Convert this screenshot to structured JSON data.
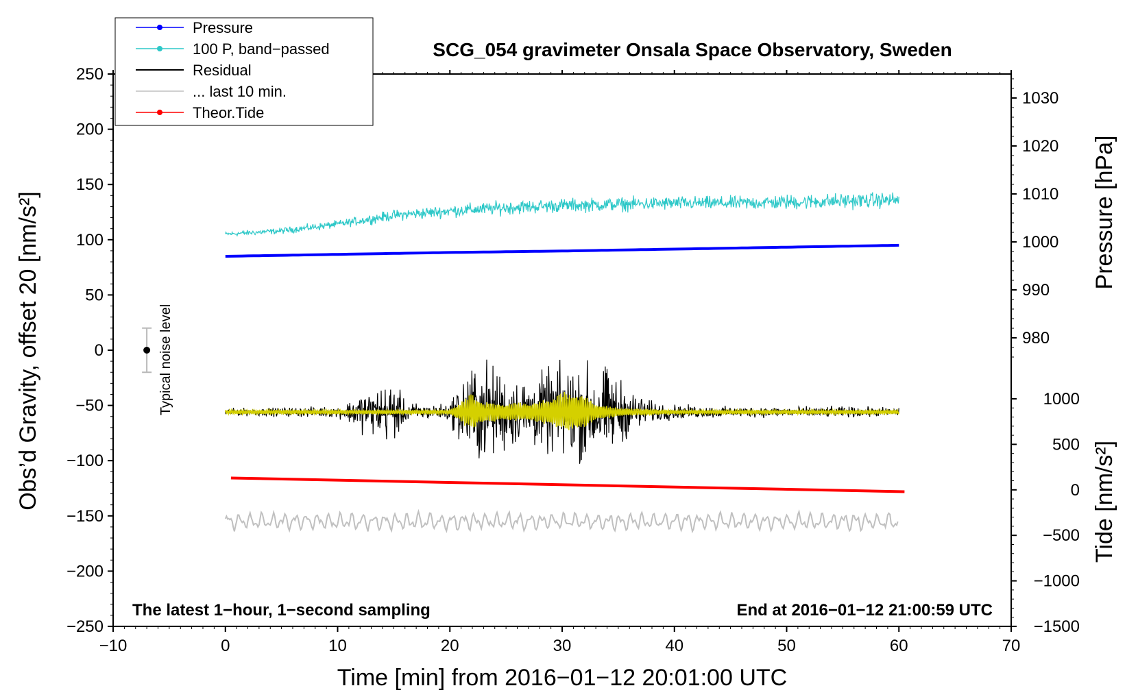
{
  "chart_data": {
    "type": "line",
    "title": "SCG_054 gravimeter Onsala Space Observatory, Sweden",
    "xlabel": "Time [min] from 2016−01−12 20:01:00 UTC",
    "ylabel_left": "Obs’d Gravity, offset 20 [nm/s²]",
    "ylabel_right_pressure": "Pressure [hPa]",
    "ylabel_right_tide": "Tide [nm/s²]",
    "xlim": [
      -10,
      70
    ],
    "ylim": [
      -250,
      250
    ],
    "pressure_axis_range": [
      975,
      1035
    ],
    "tide_axis_range": [
      -1500,
      1000
    ],
    "x_ticks": [
      -10,
      0,
      10,
      20,
      30,
      40,
      50,
      60,
      70
    ],
    "x_tick_labels": [
      "−10",
      "0",
      "10",
      "20",
      "30",
      "40",
      "50",
      "60",
      "70"
    ],
    "y_ticks": [
      250,
      200,
      150,
      100,
      50,
      0,
      -50,
      -100,
      -150,
      -200,
      -250
    ],
    "y_tick_labels": [
      "250",
      "200",
      "150",
      "100",
      "50",
      "0",
      "−50",
      "−100",
      "−150",
      "−200",
      "−250"
    ],
    "pressure_ticks": [
      1030,
      1020,
      1010,
      1000,
      990,
      980
    ],
    "pressure_tick_labels": [
      "1030",
      "1020",
      "1010",
      "1000",
      "990",
      "980"
    ],
    "tide_ticks": [
      1000,
      500,
      0,
      -500,
      -1000,
      -1500
    ],
    "tide_tick_labels": [
      "1000",
      "500",
      "0",
      "−500",
      "−1000",
      "−1500"
    ],
    "legend": {
      "position": "top-left",
      "entries": [
        {
          "label": "Pressure",
          "color": "#0000ff",
          "marker": true
        },
        {
          "label": "100 P, band−passed",
          "color": "#2ec8c8",
          "marker": true
        },
        {
          "label": "Residual",
          "color": "#000000",
          "marker": false
        },
        {
          "label": "... last 10 min.",
          "color": "#c0c0c0",
          "marker": false
        },
        {
          "label": "Theor.Tide",
          "color": "#ff0000",
          "marker": true
        }
      ]
    },
    "series": [
      {
        "name": "Pressure",
        "color": "#0000ff",
        "x": [
          0,
          10,
          20,
          30,
          40,
          50,
          60
        ],
        "values": [
          997,
          997.4,
          997.8,
          998.1,
          998.5,
          998.9,
          999.3
        ]
      },
      {
        "name": "100 P, band−passed",
        "color": "#2ec8c8",
        "x": [
          0,
          5,
          10,
          15,
          20,
          25,
          30,
          35,
          40,
          45,
          50,
          55,
          60
        ],
        "values": [
          105,
          108,
          114,
          122,
          126,
          129,
          131,
          132,
          133,
          133,
          134,
          135,
          136
        ],
        "noise_amplitude": [
          3,
          4,
          5,
          7,
          8,
          9,
          9,
          9,
          9,
          9,
          10,
          10,
          10
        ]
      },
      {
        "name": "Residual",
        "color": "#000000",
        "x": [
          0,
          5,
          10,
          11,
          12,
          13,
          14,
          15,
          16,
          18,
          20,
          21,
          22,
          23,
          24,
          25,
          26,
          28,
          30,
          31,
          32,
          33,
          34,
          35,
          36,
          38,
          40,
          45,
          50,
          55,
          60
        ],
        "values": [
          -56,
          -56,
          -56,
          -56,
          -56,
          -56,
          -56,
          -56,
          -56,
          -56,
          -56,
          -56,
          -56,
          -56,
          -56,
          -56,
          -56,
          -56,
          -56,
          -56,
          -56,
          -56,
          -56,
          -56,
          -56,
          -56,
          -56,
          -56,
          -56,
          -56,
          -56
        ],
        "envelope": [
          4,
          5,
          6,
          12,
          22,
          25,
          30,
          35,
          12,
          8,
          10,
          40,
          55,
          60,
          50,
          45,
          38,
          42,
          55,
          55,
          55,
          52,
          50,
          40,
          25,
          12,
          8,
          6,
          6,
          6,
          5
        ]
      },
      {
        "name": "Residual (yellow, filtered)",
        "color": "#d4d000",
        "x": [
          0,
          20,
          21,
          22,
          23,
          25,
          28,
          30,
          31,
          32,
          33,
          35,
          40,
          60
        ],
        "values": [
          -56,
          -56,
          -56,
          -56,
          -56,
          -56,
          -56,
          -56,
          -56,
          -56,
          -56,
          -56,
          -56,
          -56
        ],
        "envelope": [
          2,
          2,
          10,
          18,
          10,
          8,
          10,
          18,
          20,
          14,
          8,
          4,
          2,
          2
        ]
      },
      {
        "name": "... last 10 min.",
        "color": "#c0c0c0",
        "x": [
          0,
          60
        ],
        "values": [
          -155,
          -155
        ],
        "noise_amplitude": [
          8,
          8
        ]
      },
      {
        "name": "Theor.Tide",
        "color": "#ff0000",
        "x": [
          0.5,
          60.5
        ],
        "values": [
          130,
          -20
        ]
      }
    ],
    "annotations": {
      "noise_level_label": "Typical noise level",
      "noise_level_x": -7,
      "noise_level_center": 0,
      "noise_level_range": [
        -20,
        20
      ],
      "bottom_left_note": "The latest 1−hour, 1−second sampling",
      "bottom_right_note": "End at 2016−01−12 21:00:59 UTC"
    }
  }
}
